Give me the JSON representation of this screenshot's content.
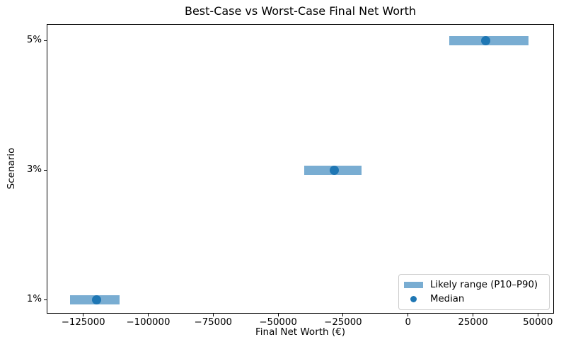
{
  "chart_data": {
    "type": "bar",
    "subtype": "horizontal_range_bar_with_median",
    "title": "Best-Case vs Worst-Case Final Net Worth",
    "xlabel": "Final Net Worth (€)",
    "ylabel": "Scenario",
    "categories": [
      "1%",
      "3%",
      "5%"
    ],
    "rows": [
      {
        "label": "1%",
        "p10": -130000,
        "median": -120000,
        "p90": -111000
      },
      {
        "label": "3%",
        "p10": -40000,
        "median": -28500,
        "p90": -18000
      },
      {
        "label": "5%",
        "p10": 16000,
        "median": 30000,
        "p90": 46500
      }
    ],
    "xlim": [
      -138800,
      55900
    ],
    "xticks": [
      -125000,
      -100000,
      -75000,
      -50000,
      -25000,
      0,
      25000,
      50000
    ],
    "xtick_labels": [
      "−125000",
      "−100000",
      "−75000",
      "−50000",
      "−25000",
      "0",
      "25000",
      "50000"
    ],
    "grid": false,
    "legend": {
      "position": "lower right",
      "range_label": "Likely range (P10–P90)",
      "median_label": "Median"
    },
    "colors": {
      "bar": "#79add2",
      "median": "#1f77b4",
      "spine": "#000000",
      "background": "#ffffff"
    }
  }
}
